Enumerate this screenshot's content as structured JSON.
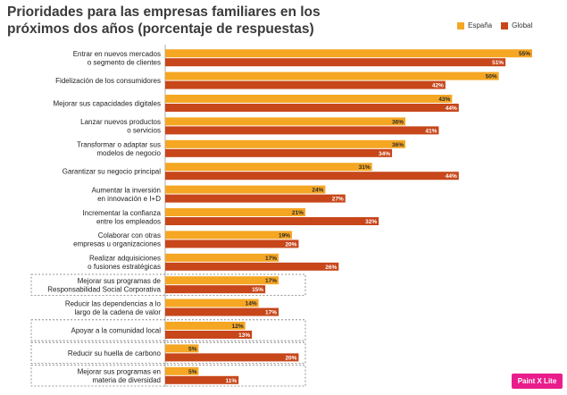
{
  "title_line1": "Prioridades para las empresas familiares en los",
  "title_line2": "próximos dos años (porcentaje de respuestas)",
  "colors": {
    "spain": "#f5a623",
    "global": "#c7461a"
  },
  "badge_label": "Paint X Lite",
  "chart_data": {
    "type": "bar",
    "orientation": "horizontal",
    "categories": [
      [
        "Entrar en nuevos mercados",
        "o segmento de clientes"
      ],
      [
        "Fidelización de los consumidores"
      ],
      [
        "Mejorar sus capacidades digitales"
      ],
      [
        "Lanzar nuevos productos",
        "o servicios"
      ],
      [
        "Transformar o adaptar sus",
        "modelos de negocio"
      ],
      [
        "Garantizar su negocio principal"
      ],
      [
        "Aumentar la inversión",
        "en innovación e I+D"
      ],
      [
        "Incrementar la confianza",
        "entre los empleados"
      ],
      [
        "Colaborar con otras",
        "empresas u organizaciones"
      ],
      [
        "Realizar adquisiciones",
        "o fusiones estratégicas"
      ],
      [
        "Mejorar sus programas de",
        "Responsabilidad Social Corporativa"
      ],
      [
        "Reducir las dependencias a lo",
        "largo de la cadena de valor"
      ],
      [
        "Apoyar a la comunidad local"
      ],
      [
        "Reducir su huella de carbono"
      ],
      [
        "Mejorar sus programas en",
        "materia de diversidad"
      ]
    ],
    "boxed": [
      false,
      false,
      false,
      false,
      false,
      false,
      false,
      false,
      false,
      false,
      true,
      false,
      true,
      true,
      true
    ],
    "series": [
      {
        "name": "España",
        "values": [
          55,
          50,
          43,
          36,
          36,
          31,
          24,
          21,
          19,
          17,
          17,
          14,
          12,
          5,
          5
        ]
      },
      {
        "name": "Global",
        "values": [
          51,
          42,
          44,
          41,
          34,
          44,
          27,
          32,
          20,
          26,
          15,
          17,
          13,
          20,
          11
        ]
      }
    ],
    "value_suffix": "%",
    "xlim": [
      0,
      55
    ],
    "legend_position": "top-right"
  }
}
